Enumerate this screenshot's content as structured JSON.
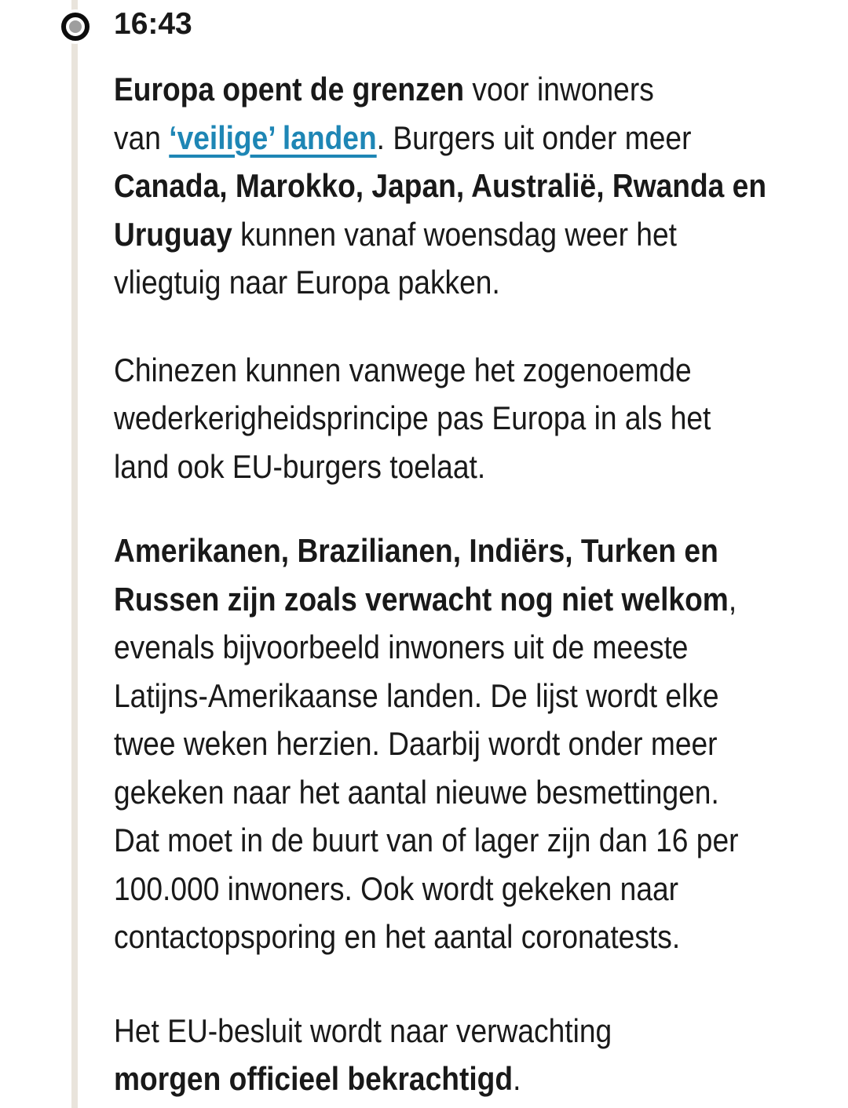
{
  "colors": {
    "text": "#191919",
    "link": "#1e86b5",
    "timeline_line": "#e9e4dc",
    "bullet_ring": "#0d0d0d",
    "bullet_dot": "#9e9e9e"
  },
  "timeline": {
    "timestamp": "16:43"
  },
  "article": {
    "paragraphs": [
      {
        "lines": [
          [
            {
              "t": "Europa opent de grenzen",
              "s": "bold"
            },
            {
              "t": " voor inwoners",
              "s": "normal"
            }
          ],
          [
            {
              "t": "van ",
              "s": "normal"
            },
            {
              "t": "‘veilige’ landen",
              "s": "link"
            },
            {
              "t": ". Burgers uit onder meer",
              "s": "normal"
            }
          ],
          [
            {
              "t": "Canada, Marokko, Japan, Australië, Rwanda en",
              "s": "bold"
            }
          ],
          [
            {
              "t": "Uruguay",
              "s": "bold"
            },
            {
              "t": " kunnen vanaf woensdag weer het",
              "s": "normal"
            }
          ],
          [
            {
              "t": "vliegtuig naar Europa pakken.",
              "s": "normal"
            }
          ]
        ]
      },
      {
        "lines": [
          [
            {
              "t": "Chinezen kunnen vanwege het zogenoemde",
              "s": "normal"
            }
          ],
          [
            {
              "t": "wederkerigheidsprincipe pas Europa in als het",
              "s": "normal"
            }
          ],
          [
            {
              "t": "land ook EU-burgers toelaat.",
              "s": "normal"
            }
          ]
        ]
      },
      {
        "lines": [
          [
            {
              "t": "Amerikanen, Brazilianen, Indiërs, Turken en",
              "s": "bold"
            }
          ],
          [
            {
              "t": "Russen zijn zoals verwacht nog niet welkom",
              "s": "bold"
            },
            {
              "t": ",",
              "s": "normal"
            }
          ],
          [
            {
              "t": "evenals bijvoorbeeld inwoners uit de meeste",
              "s": "normal"
            }
          ],
          [
            {
              "t": "Latijns-Amerikaanse landen. De lijst wordt elke",
              "s": "normal"
            }
          ],
          [
            {
              "t": "twee weken herzien. Daarbij wordt onder meer",
              "s": "normal"
            }
          ],
          [
            {
              "t": "gekeken naar het aantal nieuwe besmettingen.",
              "s": "normal"
            }
          ],
          [
            {
              "t": "Dat moet in de buurt van of lager zijn dan 16 per",
              "s": "normal"
            }
          ],
          [
            {
              "t": "100.000 inwoners. Ook wordt gekeken naar",
              "s": "normal"
            }
          ],
          [
            {
              "t": "contactopsporing en het aantal coronatests.",
              "s": "normal"
            }
          ]
        ]
      },
      {
        "lines": [
          [
            {
              "t": "Het EU-besluit wordt naar verwachting",
              "s": "normal"
            }
          ],
          [
            {
              "t": "morgen officieel bekrachtigd",
              "s": "bold"
            },
            {
              "t": ".",
              "s": "normal"
            }
          ]
        ]
      }
    ]
  }
}
